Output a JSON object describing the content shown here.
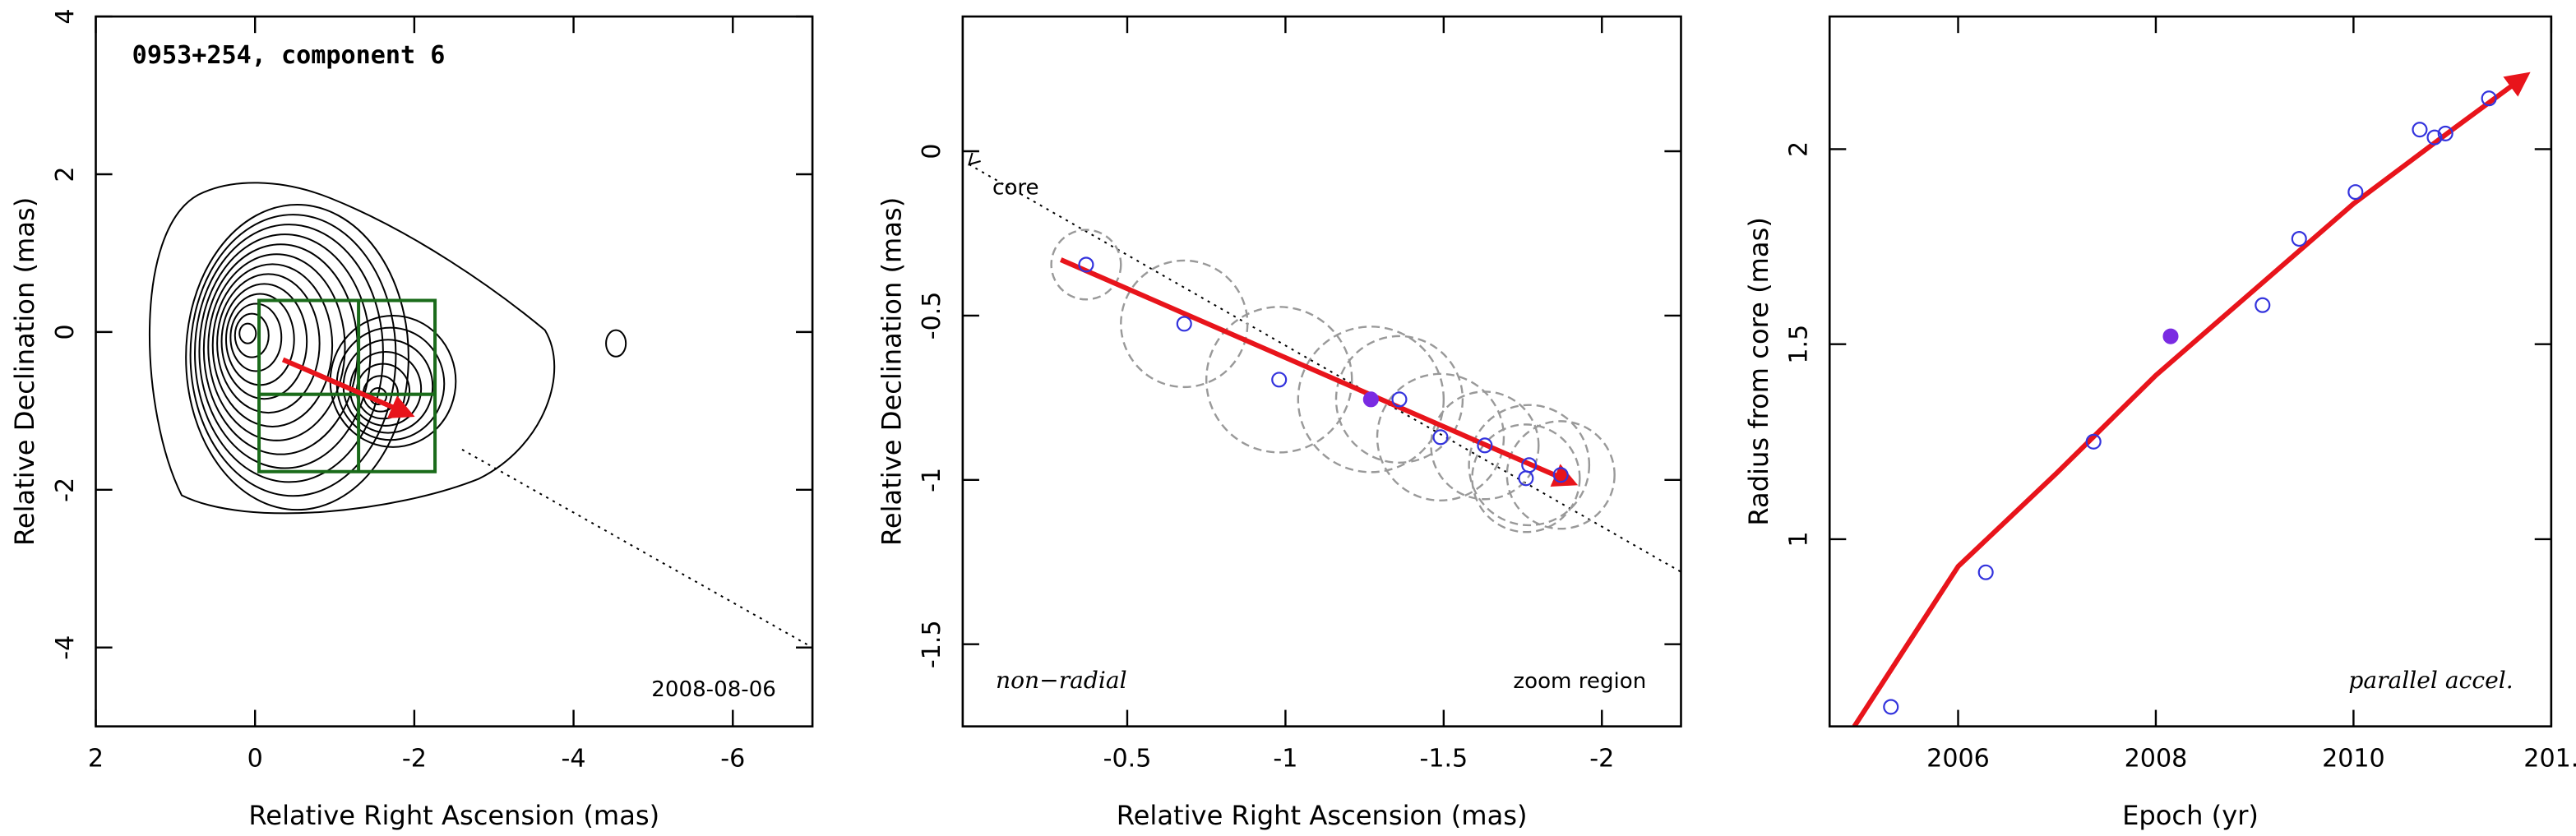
{
  "chart_data": [
    {
      "type": "contour",
      "title": "0953+254, component 6",
      "annotations": [
        "2008-08-06"
      ],
      "xlabel": "Relative Right Ascension (mas)",
      "ylabel": "Relative Declination (mas)",
      "xlim": [
        2,
        -7
      ],
      "ylim": [
        -5,
        4
      ],
      "xticks": [
        2,
        0,
        -2,
        -4,
        -6
      ],
      "yticks": [
        -4,
        -2,
        0,
        2,
        4
      ],
      "arrow": {
        "color": "#e8141b",
        "x": [
          -0.35,
          -1.95
        ],
        "y": [
          -0.35,
          -1.05
        ]
      },
      "core_line": {
        "x": [
          -2.6,
          -7
        ],
        "y": [
          -1.49,
          -4
        ]
      },
      "zoom_box": {
        "color": "#1a6b1a",
        "x": [
          -0.05,
          -1.3,
          -2.26
        ],
        "y": [
          0.4,
          -0.79,
          -1.77
        ]
      }
    },
    {
      "type": "scatter",
      "annotations": [
        "core",
        "non−radial",
        "zoom region"
      ],
      "xlabel": "Relative Right Ascension (mas)",
      "ylabel": "Relative Declination (mas)",
      "xlim": [
        0.02,
        -2.25
      ],
      "ylim": [
        -1.75,
        0.41
      ],
      "xticks": [
        -0.5,
        -1,
        -1.5,
        -2
      ],
      "yticks": [
        -1.5,
        -1,
        -0.5,
        0
      ],
      "series": [
        {
          "color": "#3333dd",
          "filled_color": "#7a2be2",
          "x": [
            -0.37,
            -0.68,
            -0.98,
            -1.27,
            -1.36,
            -1.49,
            -1.63,
            -1.77,
            -1.76,
            -1.87
          ],
          "values": [
            -0.345,
            -0.525,
            -0.695,
            -0.755,
            -0.755,
            -0.87,
            -0.895,
            -0.955,
            -0.995,
            -0.985
          ],
          "sizes": [
            0.11,
            0.2,
            0.23,
            0.23,
            0.2,
            0.2,
            0.17,
            0.19,
            0.17,
            0.17
          ],
          "filled": [
            false,
            false,
            false,
            true,
            false,
            false,
            false,
            false,
            false,
            false
          ]
        }
      ],
      "arrow": {
        "color": "#e8141b",
        "x": [
          -0.29,
          -1.91
        ],
        "y": [
          -0.33,
          -1.01
        ]
      },
      "core_line": {
        "x": [
          0.0,
          -2.25
        ],
        "y": [
          -0.04,
          -1.28
        ]
      }
    },
    {
      "type": "scatter",
      "annotations": [
        "parallel accel."
      ],
      "xlabel": "Epoch (yr)",
      "ylabel": "Radius from core (mas)",
      "xlim": [
        2004.7,
        2012
      ],
      "ylim": [
        0.52,
        2.34
      ],
      "xticks": [
        2006,
        2008,
        2010,
        {
          "value": 2012,
          "label": "201."
        }
      ],
      "yticks": [
        1,
        1.5,
        2
      ],
      "series": [
        {
          "color": "#3333dd",
          "filled_color": "#7a2be2",
          "x": [
            2005.32,
            2006.28,
            2007.37,
            2008.15,
            2009.08,
            2009.45,
            2010.02,
            2010.67,
            2010.82,
            2010.93,
            2011.37
          ],
          "values": [
            0.57,
            0.915,
            1.25,
            1.52,
            1.6,
            1.77,
            1.89,
            2.05,
            2.03,
            2.04,
            2.13
          ],
          "filled": [
            false,
            false,
            false,
            true,
            false,
            false,
            false,
            false,
            false,
            false,
            false
          ]
        }
      ],
      "arrow": {
        "color": "#e8141b",
        "x": [
          2004.95,
          2006,
          2007,
          2008,
          2009,
          2010,
          2011,
          2011.75
        ],
        "y": [
          0.52,
          0.93,
          1.17,
          1.42,
          1.64,
          1.86,
          2.05,
          2.19
        ]
      }
    }
  ]
}
